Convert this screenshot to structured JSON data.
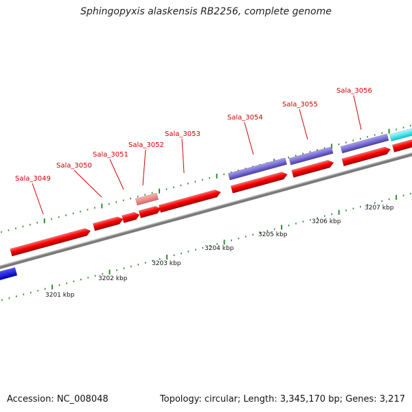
{
  "title": "Sphingopyxis alaskensis RB2256, complete genome",
  "footer": {
    "accession": "Accession: NC_008048",
    "stats": "Topology: circular; Length: 3,345,170 bp; Genes: 3,217"
  },
  "colors": {
    "forward_cds": "#ff0000",
    "forward_cds_light": "#f08080",
    "reverse_track": "#7b6fd6",
    "cyan_track": "#00ffff",
    "blue_track": "#0000ff",
    "backbone": "#8a8a8a",
    "ticks": "#2e8b2e",
    "gene_label": "#cc0000"
  },
  "scale_labels": [
    "3201 kbp",
    "3202 kbp",
    "3203 kbp",
    "3204 kbp",
    "3205 kbp",
    "3206 kbp",
    "3207 kbp"
  ],
  "gene_labels": [
    "Sala_3049",
    "Sala_3050",
    "Sala_3051",
    "Sala_3052",
    "Sala_3053",
    "Sala_3054",
    "Sala_3055",
    "Sala_3056"
  ]
}
